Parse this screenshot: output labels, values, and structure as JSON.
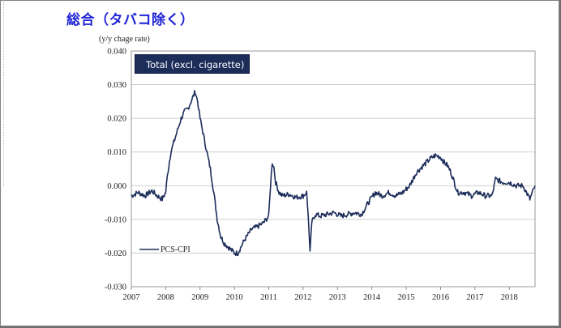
{
  "page": {
    "title": "総合（タバコ除く）",
    "unit": "(y/y chage rate)"
  },
  "chart_data": {
    "type": "line",
    "subtitle": "Total (excl. cigarette)",
    "xlabel": "",
    "ylabel": "(y/y chage rate)",
    "xlim": [
      2007.0,
      2018.75
    ],
    "ylim": [
      -0.03,
      0.04
    ],
    "yticks": [
      "0.040",
      "0.030",
      "0.020",
      "0.010",
      "0.000",
      "-0.010",
      "-0.020",
      "-0.030"
    ],
    "xticks": [
      "2007",
      "2008",
      "2009",
      "2010",
      "2011",
      "2012",
      "2013",
      "2014",
      "2015",
      "2016",
      "2017",
      "2018"
    ],
    "grid": true,
    "legend": {
      "position": "lower-left",
      "entries": [
        "PCS-CPI"
      ]
    },
    "colors": {
      "series": "#1c2d5a",
      "grid": "#bfbfbf",
      "subtitle_bg": "#1c2d5a"
    },
    "series": [
      {
        "name": "PCS-CPI",
        "x": [
          2007.0,
          2007.2,
          2007.4,
          2007.6,
          2007.75,
          2007.9,
          2008.0,
          2008.05,
          2008.15,
          2008.3,
          2008.45,
          2008.55,
          2008.65,
          2008.78,
          2008.86,
          2008.93,
          2009.0,
          2009.1,
          2009.2,
          2009.3,
          2009.4,
          2009.5,
          2009.6,
          2009.7,
          2009.8,
          2009.9,
          2010.0,
          2010.1,
          2010.2,
          2010.3,
          2010.5,
          2010.7,
          2010.85,
          2011.0,
          2011.05,
          2011.1,
          2011.15,
          2011.2,
          2011.3,
          2011.4,
          2011.6,
          2011.8,
          2012.0,
          2012.1,
          2012.15,
          2012.2,
          2012.25,
          2012.35,
          2012.5,
          2012.7,
          2012.9,
          2013.1,
          2013.3,
          2013.5,
          2013.7,
          2013.9,
          2014.1,
          2014.3,
          2014.5,
          2014.7,
          2014.9,
          2015.1,
          2015.3,
          2015.5,
          2015.7,
          2015.85,
          2016.0,
          2016.1,
          2016.2,
          2016.3,
          2016.5,
          2016.7,
          2016.9,
          2017.1,
          2017.3,
          2017.5,
          2017.6,
          2017.8,
          2018.0,
          2018.2,
          2018.4,
          2018.5,
          2018.6,
          2018.75
        ],
        "y": [
          -0.003,
          -0.002,
          -0.003,
          -0.0015,
          -0.003,
          -0.004,
          -0.002,
          0.003,
          0.01,
          0.015,
          0.02,
          0.022,
          0.023,
          0.026,
          0.028,
          0.025,
          0.02,
          0.015,
          0.01,
          0.005,
          -0.002,
          -0.01,
          -0.015,
          -0.017,
          -0.018,
          -0.019,
          -0.02,
          -0.02,
          -0.018,
          -0.016,
          -0.013,
          -0.012,
          -0.011,
          -0.009,
          0.0,
          0.007,
          0.0055,
          0.001,
          -0.002,
          -0.003,
          -0.0025,
          -0.0035,
          -0.003,
          -0.002,
          -0.009,
          -0.02,
          -0.011,
          -0.0085,
          -0.009,
          -0.0085,
          -0.008,
          -0.009,
          -0.0085,
          -0.008,
          -0.0085,
          -0.005,
          -0.002,
          -0.003,
          -0.002,
          -0.003,
          -0.002,
          0.0,
          0.004,
          0.006,
          0.008,
          0.009,
          0.0085,
          0.007,
          0.006,
          0.004,
          -0.002,
          -0.002,
          -0.003,
          -0.002,
          -0.003,
          -0.003,
          0.002,
          0.001,
          0.001,
          0.0,
          0.0,
          -0.002,
          -0.004,
          0.0
        ]
      }
    ]
  }
}
